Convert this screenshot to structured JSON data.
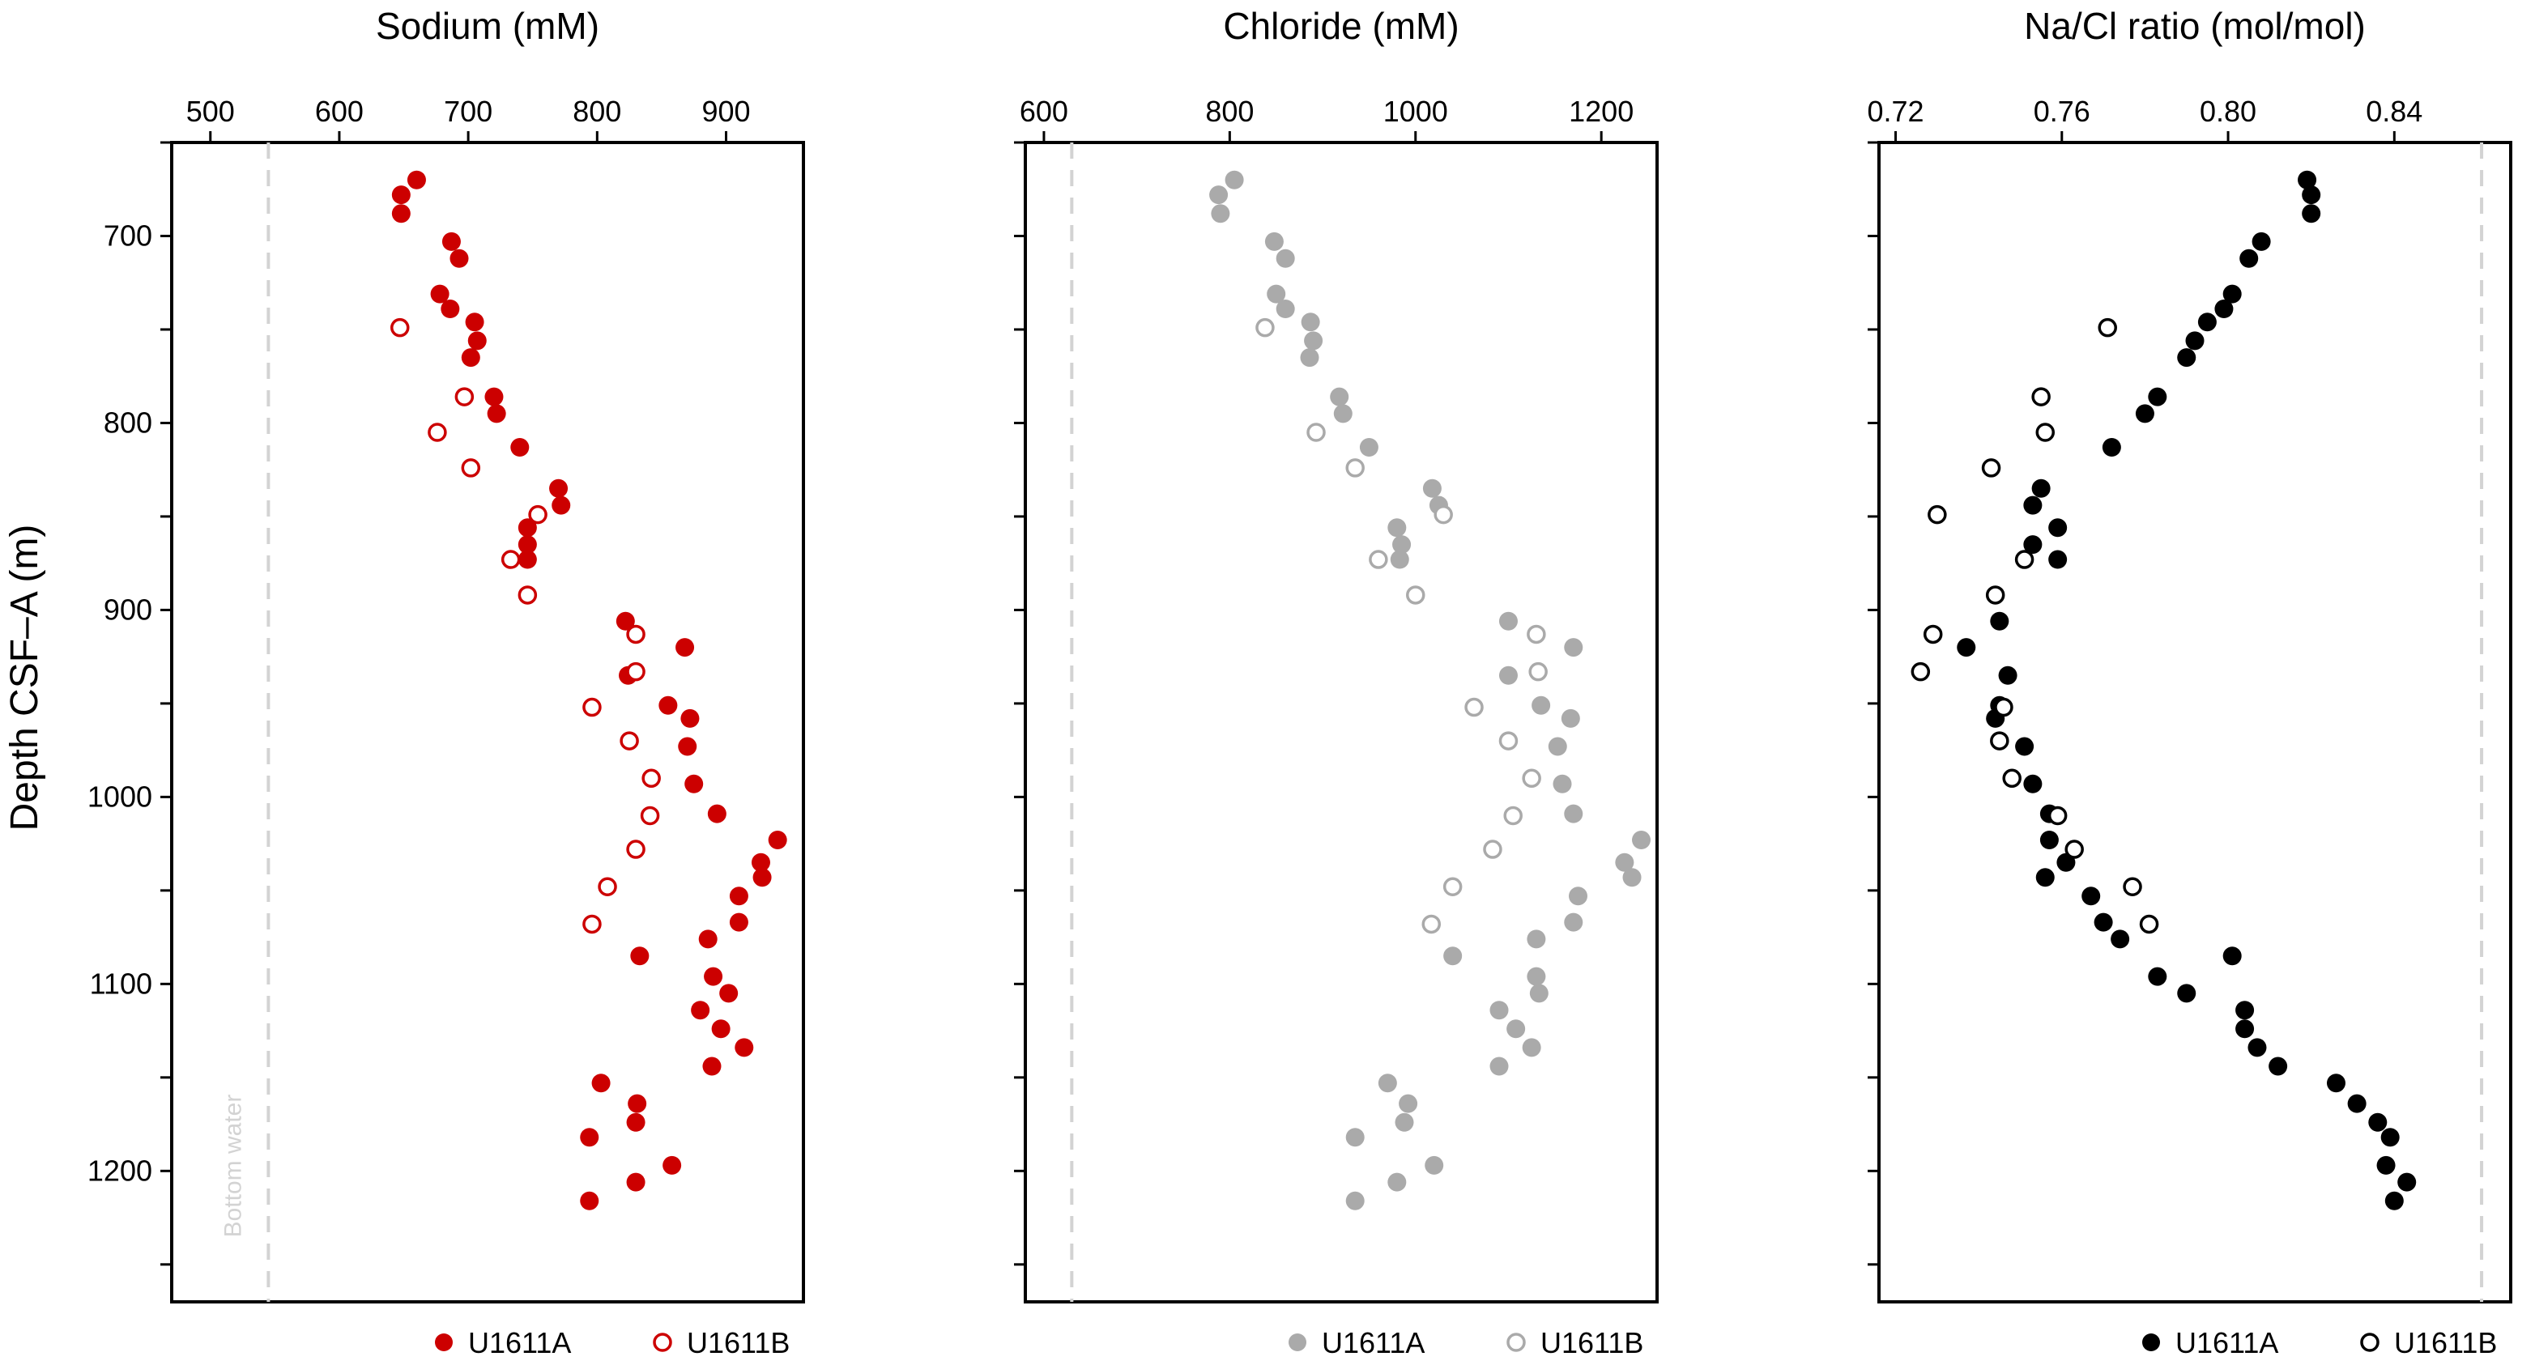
{
  "chart_data": {
    "type": "scatter",
    "ylabel": "Depth CSF–A (m)",
    "ylim": [
      650,
      1270
    ],
    "yticks": [
      700,
      800,
      900,
      1000,
      1100,
      1200
    ],
    "y_reversed": true,
    "panels": [
      {
        "title": "Sodium (mM)",
        "xlim": [
          470,
          960
        ],
        "xticks": [
          500,
          600,
          700,
          800,
          900
        ],
        "color": "#cc0000",
        "reference_line": {
          "x": 545,
          "label": "Bottom water"
        },
        "series": [
          {
            "name": "U1611A",
            "marker": "filled",
            "points": [
              [
                660,
                670
              ],
              [
                648,
                678
              ],
              [
                648,
                688
              ],
              [
                687,
                703
              ],
              [
                693,
                712
              ],
              [
                678,
                731
              ],
              [
                686,
                739
              ],
              [
                705,
                746
              ],
              [
                707,
                756
              ],
              [
                702,
                765
              ],
              [
                720,
                786
              ],
              [
                722,
                795
              ],
              [
                740,
                813
              ],
              [
                770,
                835
              ],
              [
                772,
                844
              ],
              [
                746,
                856
              ],
              [
                746,
                865
              ],
              [
                746,
                873
              ],
              [
                822,
                906
              ],
              [
                868,
                920
              ],
              [
                824,
                935
              ],
              [
                855,
                951
              ],
              [
                872,
                958
              ],
              [
                870,
                973
              ],
              [
                875,
                993
              ],
              [
                893,
                1009
              ],
              [
                940,
                1023
              ],
              [
                927,
                1035
              ],
              [
                928,
                1043
              ],
              [
                910,
                1053
              ],
              [
                910,
                1067
              ],
              [
                886,
                1076
              ],
              [
                833,
                1085
              ],
              [
                890,
                1096
              ],
              [
                902,
                1105
              ],
              [
                880,
                1114
              ],
              [
                896,
                1124
              ],
              [
                914,
                1134
              ],
              [
                889,
                1144
              ],
              [
                803,
                1153
              ],
              [
                831,
                1164
              ],
              [
                830,
                1174
              ],
              [
                794,
                1182
              ],
              [
                858,
                1197
              ],
              [
                830,
                1206
              ],
              [
                794,
                1216
              ]
            ]
          },
          {
            "name": "U1611B",
            "marker": "open",
            "points": [
              [
                647,
                749
              ],
              [
                697,
                786
              ],
              [
                676,
                805
              ],
              [
                702,
                824
              ],
              [
                754,
                849
              ],
              [
                733,
                873
              ],
              [
                746,
                892
              ],
              [
                830,
                913
              ],
              [
                830,
                933
              ],
              [
                796,
                952
              ],
              [
                825,
                970
              ],
              [
                842,
                990
              ],
              [
                841,
                1010
              ],
              [
                830,
                1028
              ],
              [
                808,
                1048
              ],
              [
                796,
                1068
              ]
            ]
          }
        ]
      },
      {
        "title": "Chloride (mM)",
        "xlim": [
          580,
          1260
        ],
        "xticks": [
          600,
          800,
          1000,
          1200
        ],
        "color": "#aaaaaa",
        "reference_line": {
          "x": 630,
          "label": ""
        },
        "series": [
          {
            "name": "U1611A",
            "marker": "filled",
            "points": [
              [
                805,
                670
              ],
              [
                788,
                678
              ],
              [
                790,
                688
              ],
              [
                848,
                703
              ],
              [
                860,
                712
              ],
              [
                850,
                731
              ],
              [
                860,
                739
              ],
              [
                887,
                746
              ],
              [
                890,
                756
              ],
              [
                886,
                765
              ],
              [
                918,
                786
              ],
              [
                922,
                795
              ],
              [
                950,
                813
              ],
              [
                1018,
                835
              ],
              [
                1025,
                844
              ],
              [
                980,
                856
              ],
              [
                985,
                865
              ],
              [
                983,
                873
              ],
              [
                1100,
                906
              ],
              [
                1170,
                920
              ],
              [
                1100,
                935
              ],
              [
                1135,
                951
              ],
              [
                1167,
                958
              ],
              [
                1153,
                973
              ],
              [
                1158,
                993
              ],
              [
                1170,
                1009
              ],
              [
                1243,
                1023
              ],
              [
                1225,
                1035
              ],
              [
                1233,
                1043
              ],
              [
                1175,
                1053
              ],
              [
                1170,
                1067
              ],
              [
                1130,
                1076
              ],
              [
                1040,
                1085
              ],
              [
                1130,
                1096
              ],
              [
                1133,
                1105
              ],
              [
                1090,
                1114
              ],
              [
                1108,
                1124
              ],
              [
                1125,
                1134
              ],
              [
                1090,
                1144
              ],
              [
                970,
                1153
              ],
              [
                992,
                1164
              ],
              [
                988,
                1174
              ],
              [
                935,
                1182
              ],
              [
                1020,
                1197
              ],
              [
                980,
                1206
              ],
              [
                935,
                1216
              ]
            ]
          },
          {
            "name": "U1611B",
            "marker": "open",
            "points": [
              [
                838,
                749
              ],
              [
                893,
                805
              ],
              [
                935,
                824
              ],
              [
                1030,
                849
              ],
              [
                960,
                873
              ],
              [
                1000,
                892
              ],
              [
                1130,
                913
              ],
              [
                1132,
                933
              ],
              [
                1063,
                952
              ],
              [
                1100,
                970
              ],
              [
                1125,
                990
              ],
              [
                1105,
                1010
              ],
              [
                1083,
                1028
              ],
              [
                1040,
                1048
              ],
              [
                1017,
                1068
              ]
            ]
          }
        ]
      },
      {
        "title": "Na/Cl ratio (mol/mol)",
        "xlim": [
          0.716,
          0.868
        ],
        "xticks": [
          0.72,
          0.76,
          0.8,
          0.84
        ],
        "color": "#000000",
        "reference_line": {
          "x": 0.861,
          "label": ""
        },
        "series": [
          {
            "name": "U1611A",
            "marker": "filled",
            "points": [
              [
                0.819,
                670
              ],
              [
                0.82,
                678
              ],
              [
                0.82,
                688
              ],
              [
                0.808,
                703
              ],
              [
                0.805,
                712
              ],
              [
                0.801,
                731
              ],
              [
                0.799,
                739
              ],
              [
                0.795,
                746
              ],
              [
                0.792,
                756
              ],
              [
                0.79,
                765
              ],
              [
                0.783,
                786
              ],
              [
                0.78,
                795
              ],
              [
                0.772,
                813
              ],
              [
                0.755,
                835
              ],
              [
                0.753,
                844
              ],
              [
                0.759,
                856
              ],
              [
                0.753,
                865
              ],
              [
                0.759,
                873
              ],
              [
                0.745,
                906
              ],
              [
                0.737,
                920
              ],
              [
                0.747,
                935
              ],
              [
                0.745,
                951
              ],
              [
                0.744,
                958
              ],
              [
                0.751,
                973
              ],
              [
                0.753,
                993
              ],
              [
                0.757,
                1009
              ],
              [
                0.757,
                1023
              ],
              [
                0.761,
                1035
              ],
              [
                0.756,
                1043
              ],
              [
                0.767,
                1053
              ],
              [
                0.77,
                1067
              ],
              [
                0.774,
                1076
              ],
              [
                0.801,
                1085
              ],
              [
                0.783,
                1096
              ],
              [
                0.79,
                1105
              ],
              [
                0.804,
                1114
              ],
              [
                0.804,
                1124
              ],
              [
                0.807,
                1134
              ],
              [
                0.812,
                1144
              ],
              [
                0.826,
                1153
              ],
              [
                0.831,
                1164
              ],
              [
                0.836,
                1174
              ],
              [
                0.839,
                1182
              ],
              [
                0.838,
                1197
              ],
              [
                0.843,
                1206
              ],
              [
                0.84,
                1216
              ]
            ]
          },
          {
            "name": "U1611B",
            "marker": "open",
            "points": [
              [
                0.771,
                749
              ],
              [
                0.755,
                786
              ],
              [
                0.756,
                805
              ],
              [
                0.743,
                824
              ],
              [
                0.73,
                849
              ],
              [
                0.751,
                873
              ],
              [
                0.744,
                892
              ],
              [
                0.729,
                913
              ],
              [
                0.726,
                933
              ],
              [
                0.746,
                952
              ],
              [
                0.745,
                970
              ],
              [
                0.748,
                990
              ],
              [
                0.759,
                1010
              ],
              [
                0.763,
                1028
              ],
              [
                0.777,
                1048
              ],
              [
                0.781,
                1068
              ]
            ]
          }
        ]
      }
    ]
  }
}
